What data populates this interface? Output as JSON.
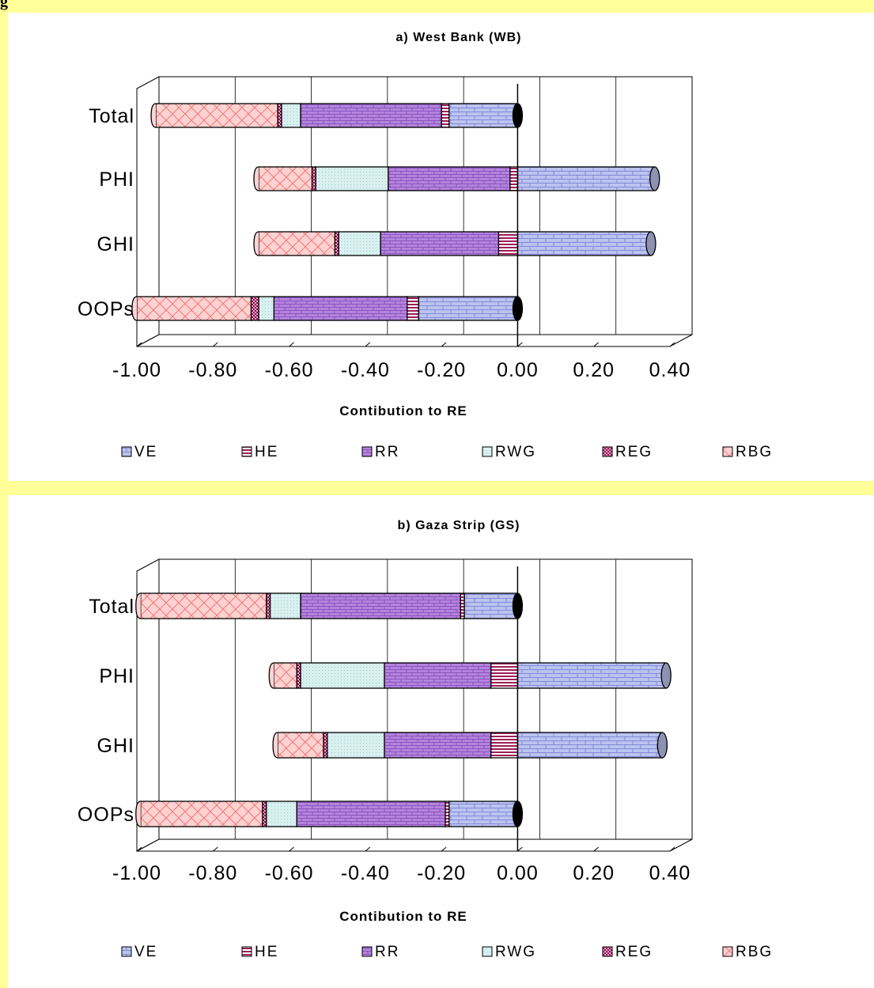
{
  "figure_caption_fragment": "g",
  "colors": {
    "VE": "#bcc3ee",
    "HE": "#e8b4c4",
    "RR": "#b484dc",
    "RWG": "#d8f0f0",
    "REG": "#c02a7a",
    "RBG": "#ffd2d2"
  },
  "legend": [
    "VE",
    "HE",
    "RR",
    "RWG",
    "REG",
    "RBG"
  ],
  "chart_data": [
    {
      "type": "bar",
      "orientation": "horizontal",
      "stacked": true,
      "title": "a) West Bank (WB)",
      "xlabel": "Contibution to RE",
      "categories": [
        "Total",
        "PHI",
        "GHI",
        "OOPs"
      ],
      "xlim": [
        -1.0,
        0.4
      ],
      "xticks": [
        "-1.00",
        "-0.80",
        "-0.60",
        "-0.40",
        "-0.20",
        "0.00",
        "0.20",
        "0.40"
      ],
      "grid": true,
      "legend_position": "bottom",
      "series": [
        {
          "name": "VE",
          "values": [
            -0.18,
            0.36,
            0.35,
            -0.26
          ]
        },
        {
          "name": "HE",
          "values": [
            -0.02,
            -0.02,
            -0.05,
            -0.03
          ]
        },
        {
          "name": "RR",
          "values": [
            -0.37,
            -0.32,
            -0.31,
            -0.35
          ]
        },
        {
          "name": "RWG",
          "values": [
            -0.05,
            -0.19,
            -0.11,
            -0.04
          ]
        },
        {
          "name": "REG",
          "values": [
            -0.01,
            -0.01,
            -0.01,
            -0.02
          ]
        },
        {
          "name": "RBG",
          "values": [
            -0.32,
            -0.14,
            -0.2,
            -0.3
          ]
        }
      ]
    },
    {
      "type": "bar",
      "orientation": "horizontal",
      "stacked": true,
      "title": "b) Gaza Strip (GS)",
      "xlabel": "Contibution to RE",
      "categories": [
        "Total",
        "PHI",
        "GHI",
        "OOPs"
      ],
      "xlim": [
        -1.0,
        0.4
      ],
      "xticks": [
        "-1.00",
        "-0.80",
        "-0.60",
        "-0.40",
        "-0.20",
        "0.00",
        "0.20",
        "0.40"
      ],
      "grid": true,
      "legend_position": "bottom",
      "series": [
        {
          "name": "VE",
          "values": [
            -0.14,
            0.39,
            0.38,
            -0.18
          ]
        },
        {
          "name": "HE",
          "values": [
            -0.01,
            -0.07,
            -0.07,
            -0.01
          ]
        },
        {
          "name": "RR",
          "values": [
            -0.42,
            -0.28,
            -0.28,
            -0.39
          ]
        },
        {
          "name": "RWG",
          "values": [
            -0.08,
            -0.22,
            -0.15,
            -0.08
          ]
        },
        {
          "name": "REG",
          "values": [
            -0.01,
            -0.01,
            -0.01,
            -0.01
          ]
        },
        {
          "name": "RBG",
          "values": [
            -0.33,
            -0.06,
            -0.12,
            -0.32
          ]
        }
      ]
    }
  ]
}
